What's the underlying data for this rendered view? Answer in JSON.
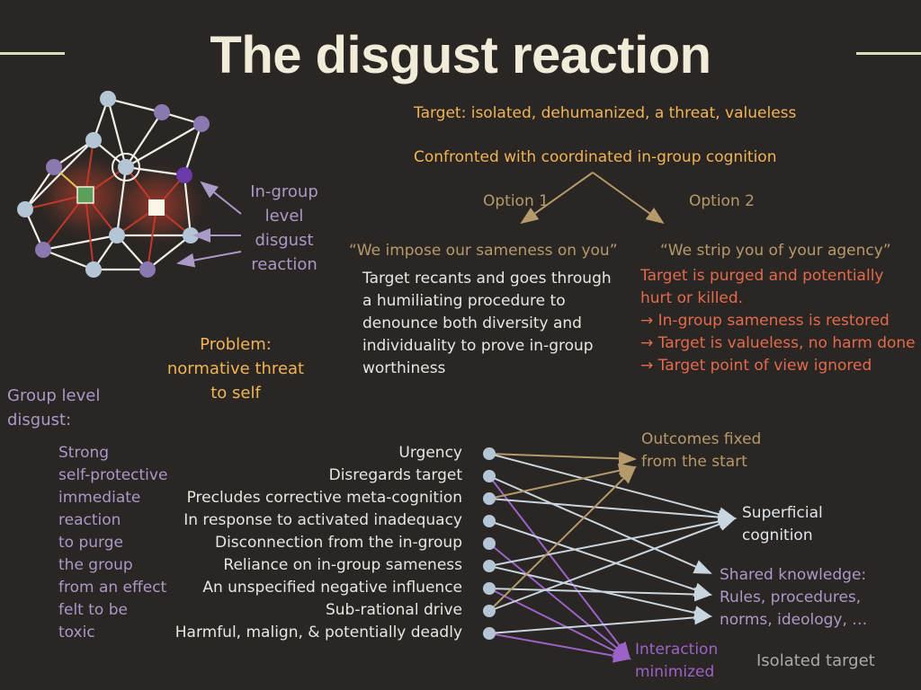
{
  "title": "The disgust reaction",
  "header": {
    "target": "Target: isolated, dehumanized, a threat, valueless",
    "confronted": "Confronted with coordinated in-group cognition",
    "option1": "Option 1",
    "option2": "Option 2"
  },
  "option1": {
    "quote": "“We impose our sameness on you”",
    "text": "Target recants and goes through a humiliating procedure to denounce both diversity and individuality to prove in-group worthiness"
  },
  "option2": {
    "quote": "“We strip you of your agency”",
    "lines": [
      "Target is purged and potentially",
      "hurt or killed.",
      "→ In-group sameness is restored",
      "→ Target is valueless, no harm done",
      "→ Target point of view ignored"
    ]
  },
  "network_label": "In-group level disgust reaction",
  "problem": "Problem: normative threat to self",
  "group_level_heading": "Group level disgust:",
  "group_level_lines": [
    "Strong",
    "self-protective",
    "immediate",
    "reaction",
    "to purge",
    "the group",
    "from an effect",
    "felt to be",
    "toxic"
  ],
  "features": [
    "Urgency",
    "Disregards target",
    "Precludes corrective meta-cognition",
    "In response to activated inadequacy",
    "Disconnection from the in-group",
    "Reliance on in-group sameness",
    "An unspecified negative influence",
    "Sub-rational drive",
    "Harmful, malign, & potentially deadly"
  ],
  "outcomes": {
    "fixed": [
      "Outcomes fixed",
      "from the start"
    ],
    "superficial": [
      "Superficial",
      "cognition"
    ],
    "shared": [
      "Shared knowledge:",
      "Rules, procedures,",
      "norms, ideology, …"
    ],
    "interaction": [
      "Interaction",
      "minimized"
    ],
    "isolated": "Isolated target"
  },
  "colors": {
    "background": "#2a2624",
    "title": "#f1ecd9",
    "orange": "#f0b455",
    "tan": "#b59a6b",
    "lavender": "#a99ac7",
    "red": "#e36a4d",
    "purple": "#9b63c8",
    "node_blue": "#b4c6d6",
    "node_purple": "#8a78b0"
  },
  "icons": [
    "network-graph-icon",
    "arrow-icon"
  ]
}
